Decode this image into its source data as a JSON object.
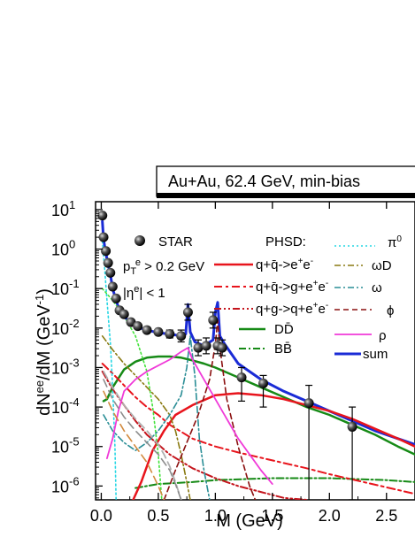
{
  "chart_data": {
    "type": "line",
    "title": "Au+Au, 62.4 GeV, min-bias",
    "xlabel": "M (GeV)",
    "ylabel": "dN^ee/dM (GeV^-1)",
    "xlim": [
      -0.05,
      2.75
    ],
    "ylim_log10": [
      -6.35,
      1.2
    ],
    "log_y": true,
    "grid": false,
    "x_ticks": [
      "0.0",
      "0.5",
      "1.0",
      "1.5",
      "2.0",
      "2.5"
    ],
    "x_tick_values": [
      0.0,
      0.5,
      1.0,
      1.5,
      2.0,
      2.5
    ],
    "y_ticks": [
      {
        "base": "10",
        "exp": "1",
        "value": 1
      },
      {
        "base": "10",
        "exp": "0",
        "value": 0
      },
      {
        "base": "10",
        "exp": "-1",
        "value": -1
      },
      {
        "base": "10",
        "exp": "-2",
        "value": -2
      },
      {
        "base": "10",
        "exp": "-3",
        "value": -3
      },
      {
        "base": "10",
        "exp": "-4",
        "value": -4
      },
      {
        "base": "10",
        "exp": "-5",
        "value": -5
      },
      {
        "base": "10",
        "exp": "-6",
        "value": -6
      }
    ],
    "annotations": {
      "cut_pt": "p_T^e > 0.2 GeV",
      "cut_eta": "|η^e| < 1",
      "phsd_header": "PHSD:"
    },
    "legend": [
      {
        "label": "STAR",
        "color": "#000000",
        "style": "marker"
      },
      {
        "label": "q+q̄->e+e-",
        "color": "#e8141c",
        "style": "solid"
      },
      {
        "label": "q+q̄->g+e+e-",
        "color": "#e8141c",
        "style": "dashdot"
      },
      {
        "label": "q+g->q+e+e-",
        "color": "#c4141c",
        "style": "dashdotdot"
      },
      {
        "label": "DD̄",
        "color": "#168a16",
        "style": "solid"
      },
      {
        "label": "BB̄",
        "color": "#168a16",
        "style": "dashdot"
      },
      {
        "label": "π0",
        "color": "#27d7e4",
        "style": "dotted"
      },
      {
        "label": "ωD",
        "color": "#8a7a12",
        "style": "dashdot"
      },
      {
        "label": "ω",
        "color": "#2a8e96",
        "style": "dashdot"
      },
      {
        "label": "ϕ",
        "color": "#8b1010",
        "style": "dashed"
      },
      {
        "label": "ρ",
        "color": "#f03ad8",
        "style": "solid"
      },
      {
        "label": "sum",
        "color": "#1a2bd6",
        "style": "solid"
      }
    ],
    "data_points": {
      "name": "STAR",
      "x": [
        0.01,
        0.02,
        0.04,
        0.06,
        0.08,
        0.1,
        0.13,
        0.16,
        0.2,
        0.26,
        0.32,
        0.4,
        0.5,
        0.6,
        0.7,
        0.76,
        0.85,
        0.92,
        0.98,
        1.02,
        1.06,
        1.23,
        1.42,
        1.82,
        2.2
      ],
      "y_log10": [
        0.85,
        0.3,
        -0.05,
        -0.35,
        -0.6,
        -0.95,
        -1.25,
        -1.55,
        -1.65,
        -1.85,
        -1.95,
        -2.05,
        -2.1,
        -2.15,
        -2.2,
        -1.6,
        -2.5,
        -2.45,
        -1.8,
        -2.45,
        -2.5,
        -3.25,
        -3.4,
        -3.9,
        -4.5
      ],
      "err_low_log10": [
        0.05,
        0.05,
        0.05,
        0.05,
        0.05,
        0.05,
        0.05,
        0.05,
        0.05,
        0.05,
        0.05,
        0.05,
        0.05,
        0.1,
        0.15,
        0.2,
        0.2,
        0.2,
        0.2,
        0.2,
        0.2,
        0.6,
        0.6,
        2.5,
        1.85
      ],
      "err_high_log10": [
        0.05,
        0.05,
        0.05,
        0.05,
        0.05,
        0.05,
        0.05,
        0.05,
        0.05,
        0.05,
        0.05,
        0.05,
        0.05,
        0.1,
        0.15,
        0.2,
        0.2,
        0.2,
        0.2,
        0.2,
        0.2,
        0.25,
        0.2,
        0.45,
        0.5
      ]
    },
    "series": [
      {
        "name": "sum",
        "color": "#1a2bd6",
        "width": 3,
        "dash": "",
        "x": [
          0.01,
          0.02,
          0.04,
          0.06,
          0.08,
          0.1,
          0.13,
          0.16,
          0.2,
          0.26,
          0.32,
          0.4,
          0.5,
          0.6,
          0.7,
          0.74,
          0.76,
          0.78,
          0.82,
          0.9,
          0.98,
          1.0,
          1.02,
          1.04,
          1.08,
          1.2,
          1.4,
          1.6,
          1.8,
          2.0,
          2.2,
          2.4,
          2.6,
          2.75
        ],
        "y": [
          0.7,
          0.25,
          -0.1,
          -0.4,
          -0.65,
          -1.0,
          -1.3,
          -1.55,
          -1.7,
          -1.9,
          -1.98,
          -2.05,
          -2.12,
          -2.15,
          -2.2,
          -2.15,
          -1.4,
          -2.1,
          -2.35,
          -2.45,
          -2.3,
          -1.6,
          -1.35,
          -2.2,
          -2.4,
          -2.9,
          -3.3,
          -3.6,
          -3.85,
          -4.1,
          -4.35,
          -4.6,
          -4.8,
          -4.95
        ]
      },
      {
        "name": "DD̄",
        "color": "#168a16",
        "width": 2.5,
        "dash": "",
        "x": [
          0.02,
          0.05,
          0.1,
          0.2,
          0.3,
          0.4,
          0.5,
          0.6,
          0.7,
          0.8,
          0.9,
          1.0,
          1.2,
          1.4,
          1.6,
          1.8,
          2.0,
          2.2,
          2.4,
          2.6,
          2.75
        ],
        "y": [
          -3.85,
          -3.8,
          -3.5,
          -3.05,
          -2.85,
          -2.75,
          -2.72,
          -2.72,
          -2.75,
          -2.82,
          -2.9,
          -3.0,
          -3.25,
          -3.5,
          -3.75,
          -4.0,
          -4.2,
          -4.45,
          -4.7,
          -5.0,
          -5.2
        ]
      },
      {
        "name": "BB̄",
        "color": "#168a16",
        "width": 2,
        "dash": "8,3,2,3",
        "x": [
          0.3,
          0.5,
          0.8,
          1.0,
          1.5,
          2.0,
          2.5,
          2.75
        ],
        "y": [
          -6.05,
          -5.95,
          -5.9,
          -5.85,
          -5.8,
          -5.8,
          -5.85,
          -5.9
        ]
      },
      {
        "name": "q+q̄->e+e-",
        "color": "#e8141c",
        "width": 2.5,
        "dash": "",
        "x": [
          0.28,
          0.35,
          0.45,
          0.55,
          0.65,
          0.8,
          1.0,
          1.2,
          1.4,
          1.6,
          1.8,
          2.0,
          2.2,
          2.4,
          2.6,
          2.75
        ],
        "y": [
          -6.35,
          -5.9,
          -5.1,
          -4.6,
          -4.2,
          -3.95,
          -3.7,
          -3.65,
          -3.7,
          -3.8,
          -3.95,
          -4.1,
          -4.3,
          -4.55,
          -4.8,
          -5.0
        ]
      },
      {
        "name": "q+q̄->g+e+e-",
        "color": "#e8141c",
        "width": 2,
        "dash": "9,4,3,4",
        "x": [
          0.01,
          0.1,
          0.2,
          0.3,
          0.4,
          0.5,
          0.6,
          0.8,
          1.0,
          1.2,
          1.5,
          1.8,
          2.0,
          2.3,
          2.6,
          2.75
        ],
        "y": [
          -2.9,
          -3.15,
          -3.45,
          -3.75,
          -4.0,
          -4.2,
          -4.45,
          -4.8,
          -5.0,
          -5.15,
          -5.35,
          -5.55,
          -5.7,
          -5.9,
          -6.1,
          -6.2
        ]
      },
      {
        "name": "q+g->q+e+e-",
        "color": "#c4141c",
        "width": 2,
        "dash": "8,3,2,3,2,3",
        "x": [
          0.01,
          0.1,
          0.2,
          0.3,
          0.4,
          0.5,
          0.6,
          0.8,
          1.0,
          1.2,
          1.4,
          1.6,
          1.8
        ],
        "y": [
          -3.1,
          -3.55,
          -3.95,
          -4.35,
          -4.7,
          -4.95,
          -5.2,
          -5.55,
          -5.8,
          -6.0,
          -6.15,
          -6.3,
          -6.35
        ]
      },
      {
        "name": "π0",
        "color": "#27d7e4",
        "width": 1.6,
        "dash": "2,3",
        "x": [
          0.01,
          0.03,
          0.05,
          0.08,
          0.1,
          0.12,
          0.13
        ],
        "y": [
          0.2,
          -0.5,
          -1.3,
          -2.4,
          -3.5,
          -5.0,
          -6.35
        ]
      },
      {
        "name": "η",
        "color": "#42e23a",
        "width": 1.6,
        "dash": "2,3",
        "x": [
          0.01,
          0.1,
          0.2,
          0.3,
          0.4,
          0.45,
          0.5,
          0.53
        ],
        "y": [
          -1.0,
          -1.3,
          -1.7,
          -2.2,
          -3.1,
          -4.0,
          -5.2,
          -6.35
        ]
      },
      {
        "name": "ωD",
        "color": "#8a7a12",
        "width": 1.6,
        "dash": "7,3,2,3",
        "x": [
          0.01,
          0.1,
          0.2,
          0.3,
          0.4,
          0.5,
          0.6,
          0.65,
          0.7,
          0.75,
          0.78
        ],
        "y": [
          -2.2,
          -2.55,
          -2.9,
          -3.2,
          -3.5,
          -3.8,
          -4.2,
          -4.6,
          -5.2,
          -5.9,
          -6.35
        ]
      },
      {
        "name": "ω",
        "color": "#2a8e96",
        "width": 1.6,
        "dash": "7,3,2,3",
        "x": [
          0.02,
          0.1,
          0.2,
          0.3,
          0.4,
          0.5,
          0.6,
          0.7,
          0.75,
          0.78,
          0.82,
          0.86,
          0.9,
          0.95
        ],
        "y": [
          -4.2,
          -4.6,
          -4.9,
          -5.1,
          -4.9,
          -4.6,
          -4.2,
          -3.7,
          -3.0,
          -2.2,
          -3.2,
          -4.8,
          -5.6,
          -6.35
        ]
      },
      {
        "name": "ϕ",
        "color": "#8b1010",
        "width": 1.6,
        "dash": "6,4",
        "x": [
          0.55,
          0.65,
          0.75,
          0.85,
          0.95,
          1.0,
          1.02,
          1.04,
          1.1,
          1.2,
          1.3,
          1.35
        ],
        "y": [
          -6.35,
          -5.6,
          -4.9,
          -4.2,
          -3.3,
          -2.4,
          -1.8,
          -2.5,
          -3.8,
          -5.0,
          -6.0,
          -6.35
        ]
      },
      {
        "name": "ρ",
        "color": "#f03ad8",
        "width": 1.8,
        "dash": "",
        "x": [
          0.05,
          0.1,
          0.15,
          0.2,
          0.3,
          0.4,
          0.5,
          0.6,
          0.7,
          0.76,
          0.8,
          0.9,
          1.0,
          1.1,
          1.2,
          1.3,
          1.4,
          1.5
        ],
        "y": [
          -5.3,
          -4.8,
          -4.1,
          -3.6,
          -3.3,
          -3.1,
          -2.95,
          -2.8,
          -2.6,
          -2.5,
          -2.8,
          -3.3,
          -3.8,
          -4.3,
          -4.8,
          -5.2,
          -5.6,
          -5.95
        ]
      },
      {
        "name": "light-grey-1",
        "color": "#b0b0b0",
        "width": 1.8,
        "dash": "9,5",
        "x": [
          0.02,
          0.1,
          0.2,
          0.3,
          0.4,
          0.5,
          0.55,
          0.6,
          0.65,
          0.7
        ],
        "y": [
          -3.1,
          -3.5,
          -3.95,
          -4.3,
          -4.6,
          -4.95,
          -5.2,
          -5.5,
          -5.9,
          -6.35
        ]
      },
      {
        "name": "grey-2",
        "color": "#8c8c8c",
        "width": 1.6,
        "dash": "9,5",
        "x": [
          0.02,
          0.1,
          0.2,
          0.3,
          0.4,
          0.5,
          0.6,
          0.65,
          0.7
        ],
        "y": [
          -3.3,
          -3.8,
          -4.25,
          -4.6,
          -4.9,
          -5.2,
          -5.6,
          -5.95,
          -6.35
        ]
      },
      {
        "name": "brown-dash",
        "color": "#d28a3e",
        "width": 1.6,
        "dash": "9,5",
        "x": [
          0.02,
          0.1,
          0.2,
          0.3,
          0.4,
          0.45,
          0.5,
          0.55
        ],
        "y": [
          -3.6,
          -4.1,
          -4.6,
          -5.0,
          -5.4,
          -5.7,
          -6.0,
          -6.35
        ]
      }
    ]
  }
}
